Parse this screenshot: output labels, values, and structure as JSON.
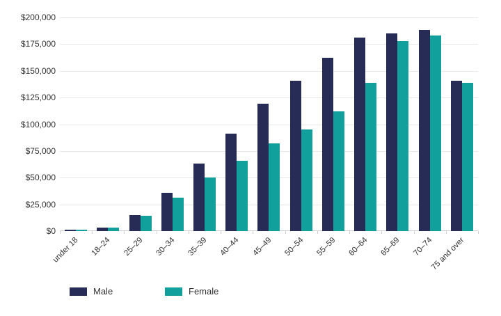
{
  "chart_data": {
    "type": "bar",
    "title": "",
    "xlabel": "",
    "ylabel": "",
    "ylim": [
      0,
      200000
    ],
    "grid": true,
    "legend_position": "bottom-left",
    "categories": [
      "under 18",
      "18–24",
      "25–29",
      "30–34",
      "35–39",
      "40–44",
      "45–49",
      "50–54",
      "55–59",
      "60–64",
      "65–69",
      "70–74",
      "75 and over"
    ],
    "series": [
      {
        "name": "Male",
        "color": "#272c57",
        "values": [
          1000,
          3500,
          15000,
          36000,
          63000,
          91000,
          119000,
          141000,
          162000,
          181000,
          185000,
          188000,
          141000
        ]
      },
      {
        "name": "Female",
        "color": "#12a09d",
        "values": [
          1000,
          3500,
          14500,
          31000,
          50000,
          66000,
          82000,
          95000,
          112000,
          139000,
          178000,
          183000,
          139000
        ]
      }
    ],
    "y_ticks": {
      "values": [
        0,
        25000,
        50000,
        75000,
        100000,
        125000,
        150000,
        175000,
        200000
      ],
      "labels": [
        "$0",
        "$25,000",
        "$50,000",
        "$75,000",
        "$100,000",
        "$125,000",
        "$150,000",
        "$175,000",
        "$200,000"
      ]
    }
  },
  "colors": {
    "male": "#272c57",
    "female": "#12a09d",
    "gridline": "#e7e7e7",
    "baseline": "#cfcfcf",
    "text": "#333333"
  }
}
